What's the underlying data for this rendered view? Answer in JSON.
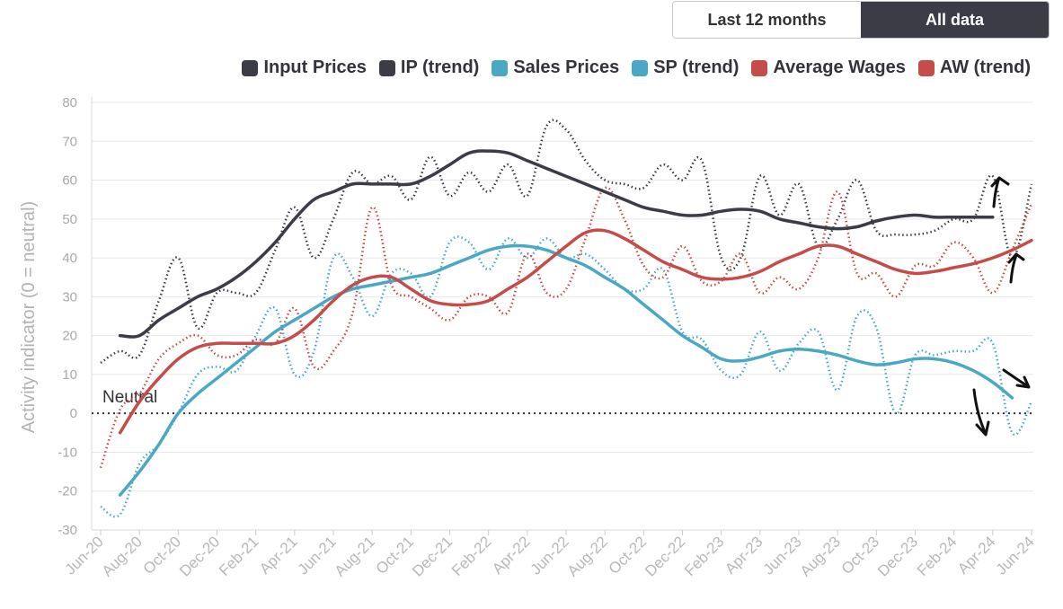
{
  "toggle": {
    "option1": "Last 12 months",
    "option2": "All data",
    "active": "All data"
  },
  "legend": [
    {
      "label": "Input Prices",
      "color": "#3b3c46"
    },
    {
      "label": "IP (trend)",
      "color": "#3b3c46"
    },
    {
      "label": "Sales Prices",
      "color": "#4aa8c4"
    },
    {
      "label": "SP (trend)",
      "color": "#4aa8c4"
    },
    {
      "label": "Average Wages",
      "color": "#c44d4a"
    },
    {
      "label": "AW (trend)",
      "color": "#c44d4a"
    }
  ],
  "chart_data": {
    "type": "line",
    "ylabel": "Activity indicator (0 = neutral)",
    "ylim": [
      -30,
      80
    ],
    "yticks": [
      80,
      70,
      60,
      50,
      40,
      30,
      20,
      10,
      0,
      -10,
      -20,
      -30
    ],
    "neutral_label": "Neutral",
    "xtick_labels": [
      "Jun-20",
      "Aug-20",
      "Oct-20",
      "Dec-20",
      "Feb-21",
      "Apr-21",
      "Jun-21",
      "Aug-21",
      "Oct-21",
      "Dec-21",
      "Feb-22",
      "Apr-22",
      "Jun-22",
      "Aug-22",
      "Oct-22",
      "Dec-22",
      "Feb-23",
      "Apr-23",
      "Jun-23",
      "Aug-23",
      "Oct-23",
      "Dec-23",
      "Feb-24",
      "Apr-24",
      "Jun-24"
    ],
    "n_points": 49,
    "series": [
      {
        "name": "Input Prices",
        "style": "dotted",
        "color": "#3b3c46",
        "start_index": 0,
        "values": [
          13,
          16,
          15,
          29,
          40,
          22,
          31,
          31,
          31,
          42,
          53,
          40,
          50,
          62,
          59,
          61,
          55,
          66,
          56,
          62,
          57,
          64,
          56,
          74,
          73,
          65,
          60,
          59,
          58,
          64,
          60,
          65,
          40,
          40,
          61,
          51,
          59,
          43,
          50,
          60,
          47,
          46,
          46,
          47,
          50,
          50,
          61,
          40,
          59
        ]
      },
      {
        "name": "IP (trend)",
        "style": "solid",
        "color": "#3b3c46",
        "start_index": 1,
        "values": [
          20,
          20,
          24,
          27,
          30,
          32,
          35,
          39,
          44,
          50,
          55,
          57,
          59,
          59,
          59,
          59,
          61,
          64,
          67,
          67.5,
          67,
          65,
          63,
          61,
          59,
          57,
          55,
          53,
          52,
          51,
          51,
          52,
          52.5,
          52,
          50,
          49,
          48,
          47.5,
          48,
          49.5,
          50.5,
          51,
          50.5,
          50.5,
          50.5,
          50.5
        ]
      },
      {
        "name": "Sales Prices",
        "style": "dotted",
        "color": "#4aa8c4",
        "start_index": 0,
        "values": [
          -24,
          -26,
          -13,
          -8,
          0,
          10,
          12,
          11,
          20,
          27,
          10,
          16,
          40,
          35,
          25,
          36,
          36,
          30,
          44,
          44,
          37,
          45,
          40,
          45,
          40,
          41,
          37,
          32,
          32,
          37,
          21,
          19,
          11,
          10,
          21,
          11,
          18,
          21,
          6,
          25,
          22,
          0,
          15,
          15,
          16,
          16,
          18,
          -5,
          3
        ]
      },
      {
        "name": "SP (trend)",
        "style": "solid",
        "color": "#4aa8c4",
        "start_index": 1,
        "values": [
          -21,
          -15,
          -8,
          0,
          5,
          9,
          13,
          17,
          21,
          24,
          27,
          30,
          32,
          33,
          34,
          35,
          36,
          38,
          40,
          42,
          43,
          43,
          42,
          40,
          38,
          35,
          32,
          28,
          24,
          20,
          17,
          14,
          13.5,
          14.5,
          16,
          16.5,
          16,
          15,
          13.5,
          12.5,
          13,
          14,
          14,
          13,
          11,
          8,
          4
        ]
      },
      {
        "name": "Average Wages",
        "style": "dotted",
        "color": "#c44d4a",
        "start_index": 0,
        "values": [
          -14,
          1,
          5,
          14,
          18,
          20,
          15,
          15,
          19,
          18,
          27,
          12,
          16,
          26,
          53,
          33,
          30,
          27,
          24,
          30,
          30,
          26,
          41,
          31,
          32,
          45,
          58,
          50,
          38,
          35,
          43,
          34,
          34,
          41,
          31,
          35,
          32,
          40,
          57,
          36,
          36,
          30,
          38,
          38,
          44,
          40,
          31,
          42,
          54
        ]
      },
      {
        "name": "AW (trend)",
        "style": "solid",
        "color": "#c44d4a",
        "start_index": 1,
        "values": [
          -5,
          3,
          9,
          14,
          17,
          18,
          18,
          18,
          18,
          20,
          24,
          29,
          33,
          35,
          35,
          32,
          29,
          28,
          28,
          29,
          32,
          35,
          39,
          43,
          46.5,
          47,
          45,
          42,
          39,
          37,
          35,
          34.5,
          35,
          36.5,
          39,
          41,
          43,
          43,
          41,
          39,
          37,
          36,
          36.5,
          37.5,
          38.5,
          40,
          42,
          44.5
        ]
      }
    ],
    "annotations": [
      "up-arrow-ip",
      "up-arrow-aw",
      "down-arrow-sp",
      "down-arrow-sp-right"
    ]
  }
}
